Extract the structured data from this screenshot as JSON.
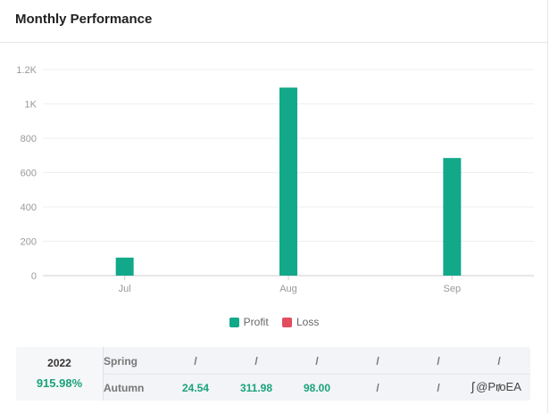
{
  "header": {
    "title": "Monthly Performance"
  },
  "chart_data": {
    "type": "bar",
    "categories": [
      "Jul",
      "Aug",
      "Sep"
    ],
    "series": [
      {
        "name": "Profit",
        "color": "#12a98a",
        "values": [
          105,
          1095,
          685
        ]
      },
      {
        "name": "Loss",
        "color": "#e34d5e",
        "values": [
          0,
          0,
          0
        ]
      }
    ],
    "yticks": [
      0,
      200,
      400,
      600,
      800,
      1000,
      1200
    ],
    "ytick_labels": [
      "0",
      "200",
      "400",
      "600",
      "800",
      "1K",
      "1.2K"
    ],
    "ylim": [
      0,
      1200
    ],
    "grid": true,
    "legend": "bottom"
  },
  "legend": {
    "profit": "Profit",
    "loss": "Loss",
    "profit_color": "#12a98a",
    "loss_color": "#e34d5e"
  },
  "table": {
    "year": "2022",
    "total": "915.98%",
    "rows": [
      {
        "label": "Spring",
        "cells": [
          "/",
          "/",
          "/",
          "/",
          "/",
          "/"
        ]
      },
      {
        "label": "Autumn",
        "cells": [
          "24.54",
          "311.98",
          "98.00",
          "/",
          "/",
          "/"
        ]
      }
    ]
  },
  "watermark": {
    "icon": "zhihu-logo-icon",
    "text": "@ProEA"
  }
}
